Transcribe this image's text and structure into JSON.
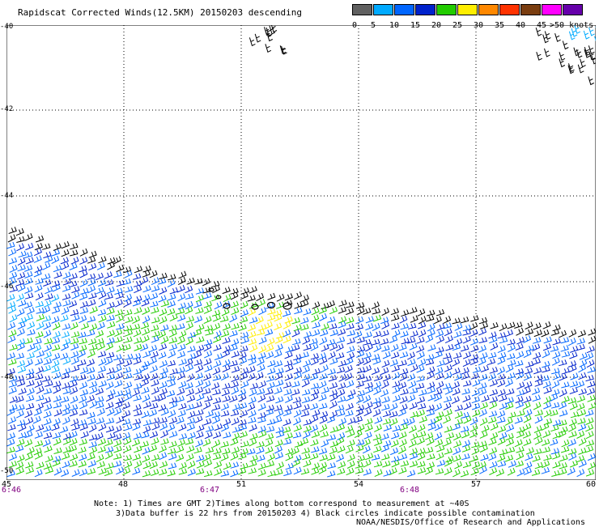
{
  "title": "Rapidscat Corrected Winds(12.5KM) 20150203 descending",
  "legend": {
    "labels": [
      "0",
      "5",
      "10",
      "15",
      "20",
      "25",
      "30",
      "35",
      "40",
      "45",
      ">50 knots"
    ],
    "colors": [
      "#606060",
      "#00aaff",
      "#0066ff",
      "#0022cc",
      "#22cc00",
      "#ffee00",
      "#ff8800",
      "#ff3300",
      "#7a3d10",
      "#ff00ff",
      "#6600aa"
    ]
  },
  "axes": {
    "y_labels": [
      "-40",
      "-42",
      "-44",
      "-46",
      "-48",
      "-50"
    ],
    "x_labels": [
      "45",
      "48",
      "51",
      "54",
      "57",
      "60"
    ],
    "time_labels": [
      "6:46",
      "6:47",
      "6:48"
    ]
  },
  "notes": {
    "line1": "Note: 1) Times are GMT 2)Times along bottom correspond to measurement at ~40S",
    "line2": "3)Data buffer is 22 hrs from 20150203 4) Black circles indicate possible contamination",
    "line3": "NOAA/NESDIS/Office of Research and Applications"
  }
}
